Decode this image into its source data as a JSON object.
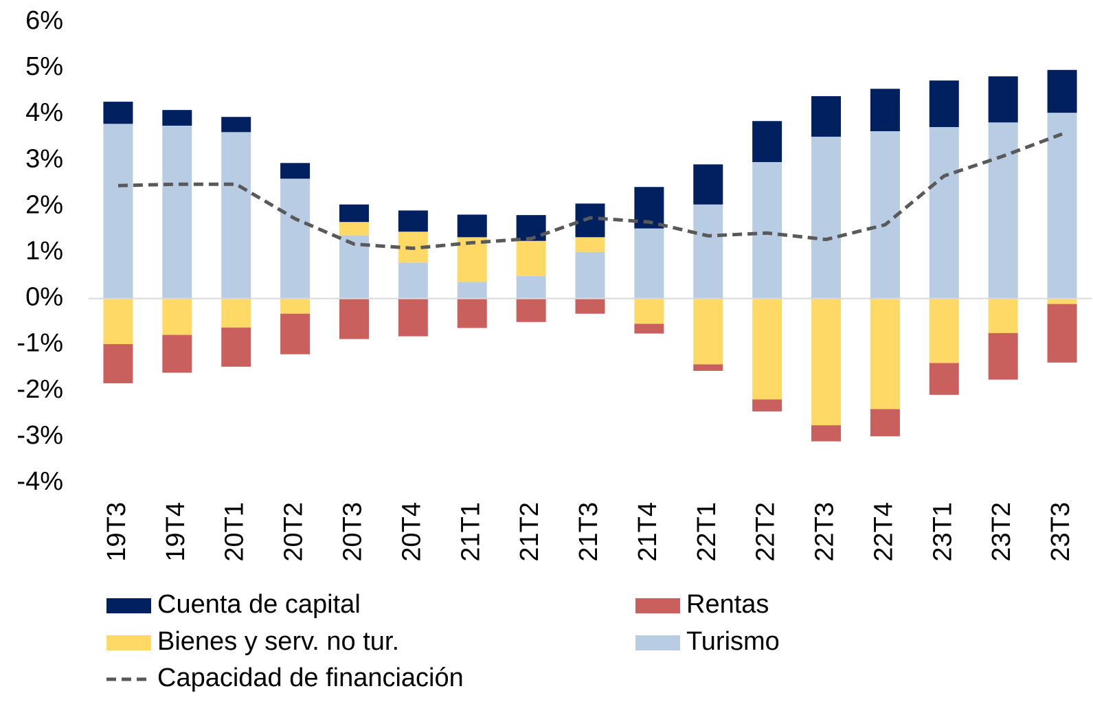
{
  "chart_data": {
    "type": "bar",
    "categories": [
      "19T3",
      "19T4",
      "20T1",
      "20T2",
      "20T3",
      "20T4",
      "21T1",
      "21T2",
      "21T3",
      "21T4",
      "22T1",
      "22T2",
      "22T3",
      "22T4",
      "23T1",
      "23T2",
      "23T3"
    ],
    "series": [
      {
        "name": "Cuenta de capital",
        "color": "#002060",
        "values": [
          0.48,
          0.34,
          0.33,
          0.34,
          0.38,
          0.46,
          0.49,
          0.56,
          0.73,
          0.9,
          0.87,
          0.89,
          0.88,
          0.92,
          1.01,
          1.0,
          0.93
        ]
      },
      {
        "name": "Rentas",
        "color": "#c9605e",
        "values": [
          -0.85,
          -0.82,
          -0.85,
          -0.88,
          -0.88,
          -0.82,
          -0.64,
          -0.51,
          -0.33,
          -0.21,
          -0.14,
          -0.26,
          -0.35,
          -0.59,
          -0.69,
          -1.01,
          -1.27
        ]
      },
      {
        "name": "Bienes y serv. no tur.",
        "color": "#ffd966",
        "values": [
          -0.99,
          -0.79,
          -0.63,
          -0.33,
          0.29,
          0.67,
          0.97,
          0.76,
          0.32,
          -0.55,
          -1.43,
          -2.19,
          -2.75,
          -2.4,
          -1.4,
          -0.75,
          -0.12
        ]
      },
      {
        "name": "Turismo",
        "color": "#b8cce4",
        "values": [
          3.79,
          3.75,
          3.61,
          2.6,
          1.37,
          0.78,
          0.36,
          0.49,
          1.01,
          1.52,
          2.04,
          2.96,
          3.51,
          3.63,
          3.72,
          3.82,
          4.03
        ]
      },
      {
        "name": "Capacidad de financiación",
        "type": "line",
        "color": "#595959",
        "values": [
          2.45,
          2.48,
          2.48,
          1.73,
          1.18,
          1.09,
          1.21,
          1.3,
          1.75,
          1.66,
          1.36,
          1.42,
          1.28,
          1.6,
          2.66,
          3.09,
          3.57
        ]
      }
    ],
    "ylim": [
      -4,
      6
    ],
    "yticks": [
      {
        "value": -4,
        "label": "-4%"
      },
      {
        "value": -3,
        "label": "-3%"
      },
      {
        "value": -2,
        "label": "-2%"
      },
      {
        "value": -1,
        "label": "-1%"
      },
      {
        "value": 0,
        "label": "0%"
      },
      {
        "value": 1,
        "label": "1%"
      },
      {
        "value": 2,
        "label": "2%"
      },
      {
        "value": 3,
        "label": "3%"
      },
      {
        "value": 4,
        "label": "4%"
      },
      {
        "value": 5,
        "label": "5%"
      },
      {
        "value": 6,
        "label": "6%"
      }
    ],
    "stacked": true
  }
}
